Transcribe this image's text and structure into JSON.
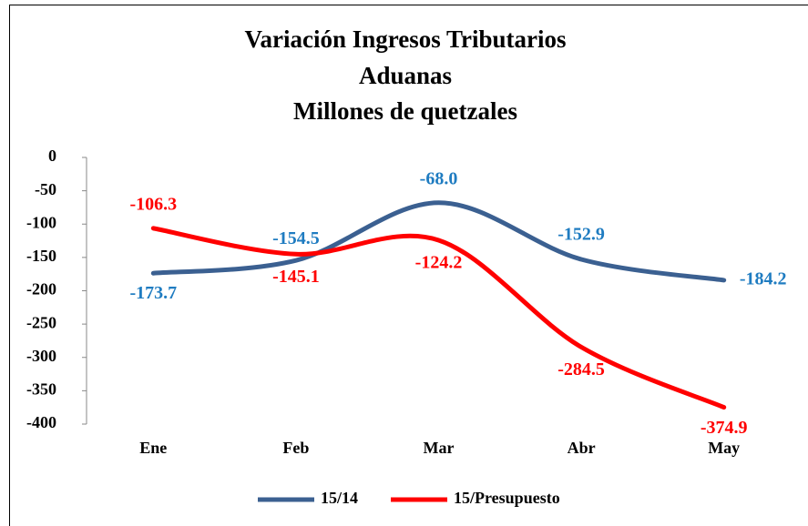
{
  "chart_data": {
    "type": "line",
    "title": [
      "Variación Ingresos Tributarios",
      "Aduanas",
      "Millones de quetzales"
    ],
    "categories": [
      "Ene",
      "Feb",
      "Mar",
      "Abr",
      "May"
    ],
    "series": [
      {
        "name": "15/14",
        "color": "#3b6091",
        "label_color": "#1f7cc1",
        "values": [
          -173.7,
          -154.5,
          -68.0,
          -152.9,
          -184.2
        ],
        "value_labels": [
          "-173.7",
          "-154.5",
          "-68.0",
          "-152.9",
          "-184.2"
        ]
      },
      {
        "name": "15/Presupuesto",
        "color": "#ff0000",
        "label_color": "#ff0000",
        "values": [
          -106.3,
          -145.1,
          -124.2,
          -284.5,
          -374.9
        ],
        "value_labels": [
          "-106.3",
          "-145.1",
          "-124.2",
          "-284.5",
          "-374.9"
        ]
      }
    ],
    "ylim": [
      -400,
      0
    ],
    "yticks": [
      0,
      -50,
      -100,
      -150,
      -200,
      -250,
      -300,
      -350,
      -400
    ],
    "smooth": true,
    "legend": "bottom"
  }
}
